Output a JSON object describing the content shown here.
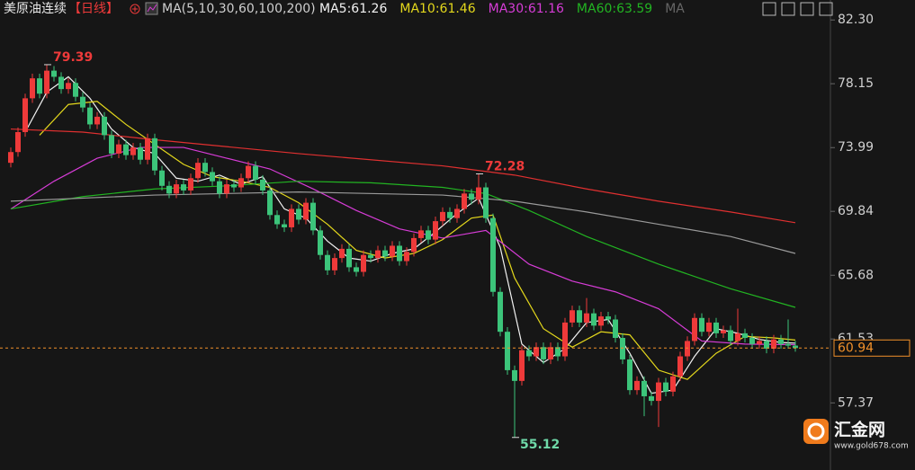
{
  "chart_data": {
    "type": "candlestick",
    "title": "美原油连续",
    "period": "【日线】",
    "indicator": "MA(5,10,30,60,100,200)",
    "legend_tail": "MA",
    "up_color": "#ee3a3a",
    "down_color": "#3cc47a",
    "last_color": "#f0902a",
    "ylim": [
      53.0,
      83.6
    ],
    "yticks": [
      {
        "value": 82.3,
        "label": "82.30"
      },
      78.15,
      73.99,
      69.84,
      65.68,
      61.53,
      57.37
    ],
    "ohlc": [
      [
        73.0,
        74.0,
        72.7,
        73.7
      ],
      [
        73.7,
        75.3,
        73.4,
        75.0
      ],
      [
        75.0,
        77.5,
        74.7,
        77.2
      ],
      [
        77.2,
        78.8,
        76.9,
        78.5
      ],
      [
        78.5,
        78.8,
        77.2,
        77.5
      ],
      [
        77.5,
        79.39,
        77.2,
        79.0
      ],
      [
        79.0,
        79.3,
        78.3,
        78.6
      ],
      [
        78.6,
        78.9,
        77.5,
        77.8
      ],
      [
        77.8,
        78.5,
        77.5,
        78.2
      ],
      [
        78.2,
        78.5,
        77.0,
        77.3
      ],
      [
        77.3,
        77.6,
        76.3,
        76.6
      ],
      [
        76.6,
        76.9,
        75.2,
        75.5
      ],
      [
        75.5,
        76.3,
        75.2,
        76.0
      ],
      [
        76.0,
        76.3,
        74.5,
        74.8
      ],
      [
        74.8,
        75.1,
        73.3,
        73.6
      ],
      [
        73.6,
        74.5,
        73.3,
        74.2
      ],
      [
        74.2,
        74.5,
        73.2,
        73.5
      ],
      [
        73.5,
        74.3,
        73.2,
        74.0
      ],
      [
        74.0,
        74.3,
        72.9,
        73.2
      ],
      [
        73.2,
        74.9,
        72.9,
        74.6
      ],
      [
        74.6,
        74.9,
        72.2,
        72.5
      ],
      [
        72.5,
        72.8,
        71.2,
        71.5
      ],
      [
        71.5,
        71.8,
        70.7,
        71.0
      ],
      [
        71.0,
        71.9,
        70.7,
        71.6
      ],
      [
        71.6,
        71.9,
        70.9,
        71.2
      ],
      [
        71.2,
        72.3,
        70.9,
        72.0
      ],
      [
        72.0,
        73.3,
        71.7,
        73.0
      ],
      [
        73.0,
        73.3,
        72.1,
        72.4
      ],
      [
        72.4,
        72.7,
        71.5,
        71.8
      ],
      [
        71.8,
        72.1,
        70.7,
        71.0
      ],
      [
        71.0,
        71.9,
        70.7,
        71.6
      ],
      [
        71.6,
        71.9,
        71.1,
        71.4
      ],
      [
        71.4,
        72.3,
        71.1,
        72.0
      ],
      [
        72.0,
        73.1,
        71.7,
        72.8
      ],
      [
        72.8,
        73.1,
        71.6,
        71.9
      ],
      [
        71.9,
        72.2,
        70.9,
        71.2
      ],
      [
        71.2,
        71.5,
        69.3,
        69.6
      ],
      [
        69.6,
        69.9,
        68.7,
        69.0
      ],
      [
        69.0,
        69.3,
        68.5,
        68.8
      ],
      [
        68.8,
        70.3,
        68.5,
        70.0
      ],
      [
        70.0,
        70.3,
        69.0,
        69.3
      ],
      [
        69.3,
        70.7,
        69.0,
        70.4
      ],
      [
        70.4,
        70.7,
        68.3,
        68.6
      ],
      [
        68.6,
        68.9,
        66.7,
        67.0
      ],
      [
        67.0,
        67.3,
        65.7,
        66.0
      ],
      [
        66.0,
        67.1,
        65.7,
        66.8
      ],
      [
        66.8,
        67.7,
        66.5,
        67.4
      ],
      [
        67.4,
        67.7,
        65.9,
        66.2
      ],
      [
        66.2,
        66.5,
        65.6,
        65.9
      ],
      [
        65.9,
        67.3,
        65.6,
        67.0
      ],
      [
        67.0,
        67.3,
        66.5,
        66.8
      ],
      [
        66.8,
        67.6,
        66.5,
        67.3
      ],
      [
        67.3,
        67.6,
        66.6,
        66.9
      ],
      [
        66.9,
        67.9,
        66.6,
        67.6
      ],
      [
        67.6,
        67.9,
        66.3,
        66.6
      ],
      [
        66.6,
        67.5,
        66.3,
        67.2
      ],
      [
        67.2,
        68.4,
        66.9,
        68.1
      ],
      [
        68.1,
        68.9,
        67.8,
        68.6
      ],
      [
        68.6,
        68.9,
        67.7,
        68.0
      ],
      [
        68.0,
        69.5,
        67.7,
        69.2
      ],
      [
        69.2,
        70.1,
        68.9,
        69.8
      ],
      [
        69.8,
        70.1,
        69.1,
        69.4
      ],
      [
        69.4,
        70.3,
        69.1,
        70.0
      ],
      [
        70.0,
        71.3,
        69.7,
        71.0
      ],
      [
        71.0,
        71.3,
        70.3,
        70.6
      ],
      [
        70.6,
        72.28,
        70.3,
        71.4
      ],
      [
        71.4,
        71.7,
        69.1,
        69.4
      ],
      [
        69.4,
        69.7,
        64.3,
        64.6
      ],
      [
        64.6,
        64.9,
        61.7,
        62.0
      ],
      [
        62.0,
        62.3,
        59.2,
        59.5
      ],
      [
        59.5,
        59.8,
        55.12,
        58.8
      ],
      [
        58.8,
        61.1,
        58.5,
        60.8
      ],
      [
        60.8,
        61.1,
        60.1,
        60.4
      ],
      [
        60.4,
        61.3,
        60.1,
        61.0
      ],
      [
        61.0,
        61.3,
        59.9,
        60.2
      ],
      [
        60.2,
        61.3,
        59.9,
        61.0
      ],
      [
        61.0,
        61.3,
        60.1,
        60.4
      ],
      [
        60.4,
        62.9,
        60.1,
        62.6
      ],
      [
        62.6,
        63.7,
        62.3,
        63.4
      ],
      [
        63.4,
        63.7,
        62.3,
        62.6
      ],
      [
        62.6,
        64.2,
        62.3,
        63.2
      ],
      [
        63.2,
        63.5,
        62.1,
        62.4
      ],
      [
        62.4,
        63.3,
        62.1,
        63.0
      ],
      [
        63.0,
        63.3,
        62.5,
        62.8
      ],
      [
        62.8,
        63.1,
        61.3,
        61.6
      ],
      [
        61.6,
        61.9,
        59.9,
        60.2
      ],
      [
        60.2,
        60.5,
        57.9,
        58.2
      ],
      [
        58.2,
        59.1,
        57.9,
        58.8
      ],
      [
        58.8,
        59.1,
        56.5,
        57.8
      ],
      [
        57.8,
        58.1,
        57.2,
        57.5
      ],
      [
        57.5,
        59.0,
        55.8,
        58.7
      ],
      [
        58.7,
        59.0,
        57.8,
        58.1
      ],
      [
        58.1,
        59.4,
        57.8,
        59.1
      ],
      [
        59.1,
        60.7,
        58.8,
        60.4
      ],
      [
        60.4,
        61.7,
        60.1,
        61.4
      ],
      [
        61.4,
        63.2,
        61.1,
        62.9
      ],
      [
        62.9,
        63.2,
        61.7,
        62.0
      ],
      [
        62.0,
        62.9,
        61.7,
        62.6
      ],
      [
        62.6,
        62.9,
        61.6,
        61.9
      ],
      [
        61.9,
        62.4,
        61.6,
        62.1
      ],
      [
        62.1,
        62.4,
        61.1,
        61.4
      ],
      [
        61.4,
        63.5,
        61.1,
        61.9
      ],
      [
        61.9,
        62.2,
        61.3,
        61.6
      ],
      [
        61.6,
        61.9,
        60.9,
        61.2
      ],
      [
        61.2,
        61.7,
        60.9,
        61.4
      ],
      [
        61.4,
        61.7,
        60.6,
        60.9
      ],
      [
        60.9,
        61.8,
        60.6,
        61.5
      ],
      [
        61.5,
        61.8,
        60.9,
        61.2
      ],
      [
        61.2,
        62.8,
        60.9,
        61.1
      ],
      [
        61.1,
        61.4,
        60.7,
        60.94
      ]
    ],
    "high_labels": [
      5,
      65
    ],
    "low_labels": [
      70
    ],
    "series": [
      {
        "name": "MA5:61.26",
        "color": "#f2f2f2",
        "x": [
          2,
          5,
          8,
          11,
          14,
          17,
          20,
          23,
          26,
          29,
          32,
          35,
          38,
          41,
          44,
          47,
          50,
          53,
          56,
          59,
          62,
          65,
          68,
          71,
          74,
          77,
          80,
          83,
          86,
          89,
          92,
          95,
          98,
          101,
          104,
          107,
          109
        ],
        "values": [
          75.0,
          77.6,
          78.6,
          77.2,
          75.2,
          74.0,
          73.6,
          72.0,
          71.8,
          72.2,
          71.6,
          72.1,
          70.0,
          69.4,
          67.9,
          66.8,
          66.6,
          67.1,
          67.4,
          68.5,
          69.7,
          70.7,
          67.5,
          61.2,
          60.0,
          60.9,
          62.6,
          62.8,
          60.6,
          58.0,
          58.2,
          60.4,
          62.2,
          61.9,
          61.5,
          61.3,
          61.26
        ]
      },
      {
        "name": "MA10:61.46",
        "color": "#e4d81c",
        "x": [
          4,
          8,
          12,
          16,
          20,
          24,
          28,
          32,
          36,
          40,
          44,
          48,
          52,
          56,
          60,
          64,
          67,
          70,
          74,
          78,
          82,
          86,
          90,
          94,
          98,
          102,
          106,
          109
        ],
        "values": [
          74.8,
          76.8,
          77.0,
          75.5,
          74.2,
          72.9,
          72.1,
          71.8,
          71.4,
          70.4,
          69.0,
          67.3,
          66.8,
          67.1,
          68.0,
          69.4,
          69.6,
          65.5,
          62.2,
          61.0,
          62.0,
          61.8,
          59.5,
          58.9,
          60.6,
          61.7,
          61.6,
          61.46
        ]
      },
      {
        "name": "MA30:61.16",
        "color": "#d63cd6",
        "x": [
          0,
          6,
          12,
          18,
          24,
          30,
          36,
          42,
          48,
          54,
          60,
          66,
          72,
          78,
          84,
          90,
          96,
          102,
          109
        ],
        "values": [
          70.0,
          71.8,
          73.3,
          74.0,
          74.0,
          73.3,
          72.6,
          71.3,
          69.9,
          68.7,
          68.1,
          68.6,
          66.4,
          65.3,
          64.6,
          63.5,
          61.4,
          61.2,
          61.16
        ]
      },
      {
        "name": "MA60:63.59",
        "color": "#22b422",
        "x": [
          0,
          10,
          20,
          30,
          40,
          50,
          60,
          66,
          72,
          80,
          90,
          100,
          109
        ],
        "values": [
          70.0,
          70.8,
          71.3,
          71.5,
          71.8,
          71.7,
          71.4,
          71.0,
          69.9,
          68.2,
          66.4,
          64.8,
          63.59
        ]
      },
      {
        "color": "#9a9a9a",
        "x": [
          0,
          20,
          40,
          60,
          70,
          80,
          90,
          100,
          109
        ],
        "values": [
          70.5,
          70.9,
          71.1,
          70.9,
          70.5,
          69.8,
          69.0,
          68.2,
          67.1
        ]
      },
      {
        "color": "#e03030",
        "x": [
          0,
          10,
          20,
          40,
          60,
          70,
          80,
          90,
          100,
          109
        ],
        "values": [
          75.2,
          75.0,
          74.5,
          73.6,
          72.8,
          72.2,
          71.3,
          70.5,
          69.8,
          69.1
        ]
      }
    ]
  },
  "watermark": {
    "name": "汇金网",
    "url": "www.gold678.com"
  }
}
